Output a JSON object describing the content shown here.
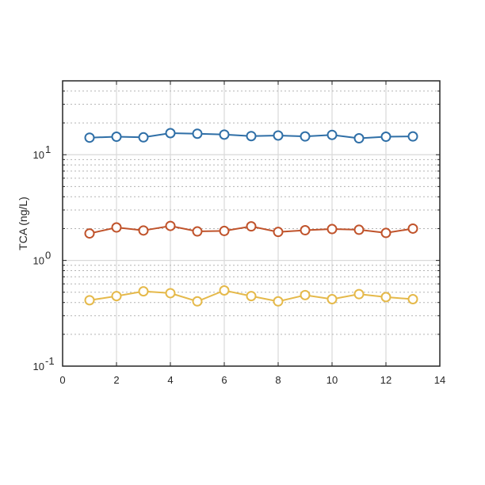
{
  "chart_data": {
    "type": "line",
    "ylabel": "TCA (ng/L)",
    "xlim": [
      0,
      14
    ],
    "ylim": [
      0.1,
      50
    ],
    "y_scale": "log",
    "grid": true,
    "x_ticks": [
      "0",
      "2",
      "4",
      "6",
      "8",
      "10",
      "12",
      "14"
    ],
    "y_ticks": [
      {
        "base": "10",
        "exp": "-1"
      },
      {
        "base": "10",
        "exp": "0"
      },
      {
        "base": "10",
        "exp": "1"
      }
    ],
    "x": [
      1,
      2,
      3,
      4,
      5,
      6,
      7,
      8,
      9,
      10,
      11,
      12,
      13
    ],
    "series": [
      {
        "color": "#2f6fa7",
        "values": [
          14.5,
          14.8,
          14.6,
          16.0,
          15.8,
          15.5,
          15.0,
          15.2,
          14.9,
          15.4,
          14.3,
          14.8,
          14.9
        ]
      },
      {
        "color": "#c0532b",
        "values": [
          1.8,
          2.05,
          1.92,
          2.12,
          1.88,
          1.9,
          2.1,
          1.86,
          1.93,
          1.98,
          1.95,
          1.82,
          2.0
        ]
      },
      {
        "color": "#e5b94a",
        "values": [
          0.42,
          0.46,
          0.51,
          0.49,
          0.41,
          0.52,
          0.46,
          0.41,
          0.47,
          0.43,
          0.48,
          0.45,
          0.43
        ]
      }
    ]
  }
}
